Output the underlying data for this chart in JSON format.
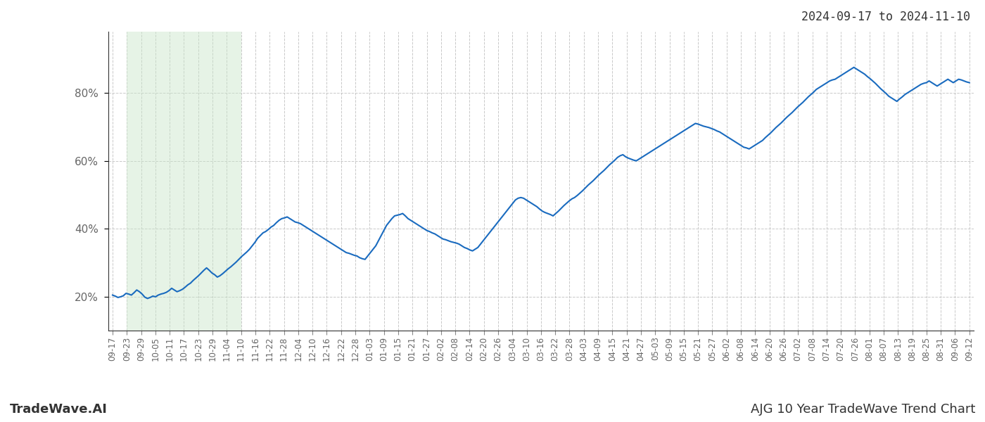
{
  "title_right": "2024-09-17 to 2024-11-10",
  "footer_left": "TradeWave.AI",
  "footer_right": "AJG 10 Year TradeWave Trend Chart",
  "background_color": "#ffffff",
  "line_color": "#1a6bbf",
  "shade_color": "#c8e6c9",
  "shade_alpha": 0.45,
  "ylim": [
    10,
    98
  ],
  "yticks": [
    20,
    40,
    60,
    80
  ],
  "grid_color": "#bbbbbb",
  "x_labels": [
    "09-17",
    "09-23",
    "09-29",
    "10-05",
    "10-11",
    "10-17",
    "10-23",
    "10-29",
    "11-04",
    "11-10",
    "11-16",
    "11-22",
    "11-28",
    "12-04",
    "12-10",
    "12-16",
    "12-22",
    "12-28",
    "01-03",
    "01-09",
    "01-15",
    "01-21",
    "01-27",
    "02-02",
    "02-08",
    "02-14",
    "02-20",
    "02-26",
    "03-04",
    "03-10",
    "03-16",
    "03-22",
    "03-28",
    "04-03",
    "04-09",
    "04-15",
    "04-21",
    "04-27",
    "05-03",
    "05-09",
    "05-15",
    "05-21",
    "05-27",
    "06-02",
    "06-08",
    "06-14",
    "06-20",
    "06-26",
    "07-02",
    "07-08",
    "07-14",
    "07-20",
    "07-26",
    "08-01",
    "08-07",
    "08-13",
    "08-19",
    "08-25",
    "08-31",
    "09-06",
    "09-12"
  ],
  "shade_x_start_label": "09-23",
  "shade_x_end_label": "11-10",
  "line_width": 1.5,
  "tick_fontsize": 8.5,
  "footer_fontsize": 13,
  "title_fontsize": 12,
  "y_values": [
    20.5,
    20.2,
    19.8,
    20.0,
    20.3,
    21.0,
    20.8,
    20.5,
    21.2,
    22.0,
    21.5,
    20.8,
    19.9,
    19.5,
    19.8,
    20.2,
    20.0,
    20.5,
    20.8,
    21.0,
    21.3,
    21.8,
    22.5,
    22.0,
    21.5,
    21.8,
    22.2,
    22.8,
    23.5,
    24.0,
    24.8,
    25.5,
    26.2,
    27.0,
    27.8,
    28.5,
    27.8,
    27.0,
    26.5,
    25.8,
    26.2,
    26.8,
    27.5,
    28.2,
    28.8,
    29.5,
    30.2,
    31.0,
    31.8,
    32.5,
    33.2,
    34.0,
    35.0,
    36.0,
    37.2,
    38.0,
    38.8,
    39.2,
    39.8,
    40.5,
    41.0,
    41.8,
    42.5,
    43.0,
    43.2,
    43.5,
    43.0,
    42.5,
    42.0,
    41.8,
    41.5,
    41.0,
    40.5,
    40.0,
    39.5,
    39.0,
    38.5,
    38.0,
    37.5,
    37.0,
    36.5,
    36.0,
    35.5,
    35.0,
    34.5,
    34.0,
    33.5,
    33.0,
    32.8,
    32.5,
    32.2,
    32.0,
    31.5,
    31.2,
    31.0,
    32.0,
    33.0,
    34.0,
    35.0,
    36.5,
    38.0,
    39.5,
    41.0,
    42.0,
    43.0,
    43.8,
    44.0,
    44.2,
    44.5,
    43.8,
    43.0,
    42.5,
    42.0,
    41.5,
    41.0,
    40.5,
    40.0,
    39.5,
    39.2,
    38.8,
    38.5,
    38.0,
    37.5,
    37.0,
    36.8,
    36.5,
    36.2,
    36.0,
    35.8,
    35.5,
    35.0,
    34.5,
    34.2,
    33.8,
    33.5,
    34.0,
    34.5,
    35.5,
    36.5,
    37.5,
    38.5,
    39.5,
    40.5,
    41.5,
    42.5,
    43.5,
    44.5,
    45.5,
    46.5,
    47.5,
    48.5,
    49.0,
    49.2,
    49.0,
    48.5,
    48.0,
    47.5,
    47.0,
    46.5,
    45.8,
    45.2,
    44.8,
    44.5,
    44.2,
    43.8,
    44.5,
    45.2,
    46.0,
    46.8,
    47.5,
    48.2,
    48.8,
    49.2,
    49.8,
    50.5,
    51.2,
    52.0,
    52.8,
    53.5,
    54.2,
    55.0,
    55.8,
    56.5,
    57.2,
    58.0,
    58.8,
    59.5,
    60.2,
    61.0,
    61.5,
    61.8,
    61.2,
    60.8,
    60.5,
    60.2,
    60.0,
    60.5,
    61.0,
    61.5,
    62.0,
    62.5,
    63.0,
    63.5,
    64.0,
    64.5,
    65.0,
    65.5,
    66.0,
    66.5,
    67.0,
    67.5,
    68.0,
    68.5,
    69.0,
    69.5,
    70.0,
    70.5,
    71.0,
    70.8,
    70.5,
    70.2,
    70.0,
    69.8,
    69.5,
    69.2,
    68.8,
    68.5,
    68.0,
    67.5,
    67.0,
    66.5,
    66.0,
    65.5,
    65.0,
    64.5,
    64.0,
    63.8,
    63.5,
    64.0,
    64.5,
    65.0,
    65.5,
    66.0,
    66.8,
    67.5,
    68.2,
    69.0,
    69.8,
    70.5,
    71.2,
    72.0,
    72.8,
    73.5,
    74.2,
    75.0,
    75.8,
    76.5,
    77.2,
    78.0,
    78.8,
    79.5,
    80.2,
    81.0,
    81.5,
    82.0,
    82.5,
    83.0,
    83.5,
    83.8,
    84.0,
    84.5,
    85.0,
    85.5,
    86.0,
    86.5,
    87.0,
    87.5,
    87.0,
    86.5,
    86.0,
    85.5,
    84.8,
    84.2,
    83.5,
    82.8,
    82.0,
    81.2,
    80.5,
    79.8,
    79.0,
    78.5,
    78.0,
    77.5,
    78.2,
    78.8,
    79.5,
    80.0,
    80.5,
    81.0,
    81.5,
    82.0,
    82.5,
    82.8,
    83.0,
    83.5,
    83.0,
    82.5,
    82.0,
    82.5,
    83.0,
    83.5,
    84.0,
    83.5,
    83.0,
    83.5,
    84.0,
    83.8,
    83.5,
    83.2,
    83.0
  ]
}
